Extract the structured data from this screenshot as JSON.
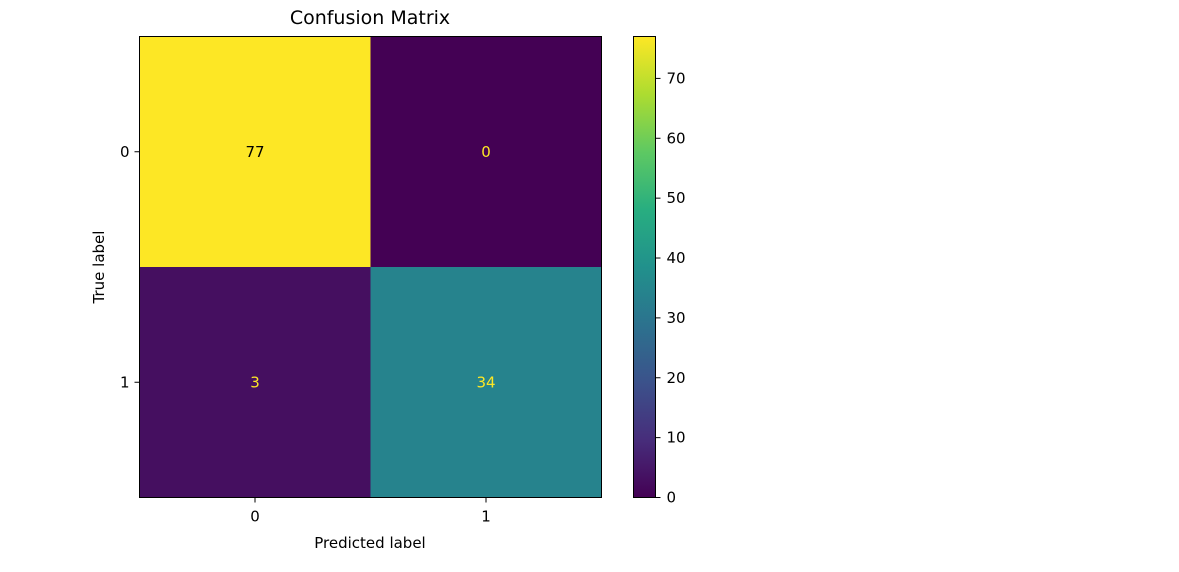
{
  "chart_data": {
    "type": "heatmap",
    "title": "Confusion Matrix",
    "xlabel": "Predicted label",
    "ylabel": "True label",
    "x_tick_labels": [
      "0",
      "1"
    ],
    "y_tick_labels": [
      "0",
      "1"
    ],
    "matrix": [
      [
        77,
        0
      ],
      [
        3,
        34
      ]
    ],
    "cell_labels": [
      [
        "77",
        "0"
      ],
      [
        "3",
        "34"
      ]
    ],
    "colormap": "viridis",
    "colorbar": {
      "range": [
        0,
        77
      ],
      "ticks": [
        0,
        10,
        20,
        30,
        40,
        50,
        60,
        70
      ],
      "tick_labels": [
        "0",
        "10",
        "20",
        "30",
        "40",
        "50",
        "60",
        "70"
      ]
    },
    "grid": false,
    "annotation_color_low": "#fde725",
    "annotation_color_high": "#000000"
  }
}
